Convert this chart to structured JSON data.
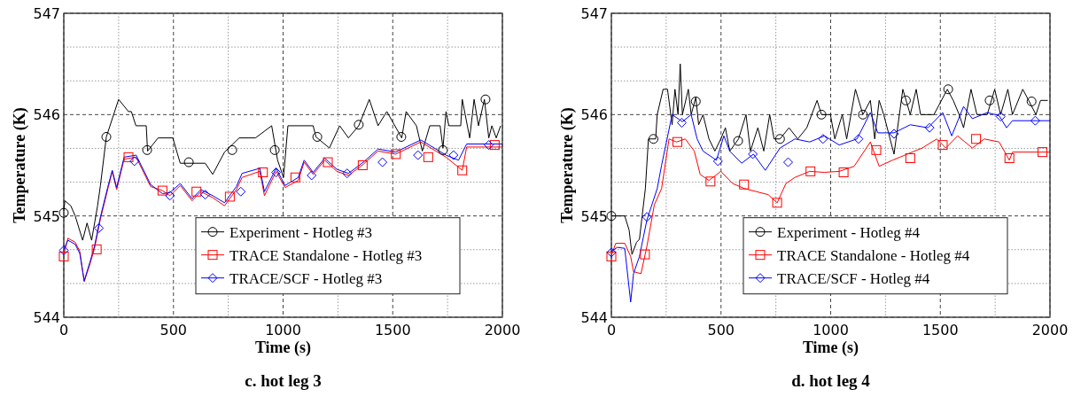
{
  "chart_data": [
    {
      "type": "line",
      "title": "c. hot leg 3",
      "xlabel": "Time (s)",
      "ylabel": "Temperature (K)",
      "xlim": [
        0,
        2000
      ],
      "ylim": [
        544,
        547
      ],
      "xticks": [
        0,
        {
          "value": 250,
          "label": null
        },
        500,
        {
          "value": 750,
          "label": null
        },
        1000,
        {
          "value": 1250,
          "label": null
        },
        1500,
        {
          "value": 1750,
          "label": null
        },
        2000
      ],
      "yticks": [
        544,
        {
          "value": 544.333,
          "label": null
        },
        {
          "value": 544.667,
          "label": null
        },
        545,
        {
          "value": 545.333,
          "label": null
        },
        {
          "value": 545.667,
          "label": null
        },
        546,
        {
          "value": 546.333,
          "label": null
        },
        {
          "value": 546.667,
          "label": null
        },
        547
      ],
      "grid": true,
      "legend": "bottom right",
      "line_style": "solid",
      "series": [
        {
          "name": "Experiment - Hotleg #3",
          "color": "#000000",
          "x": [
            0,
            5,
            32,
            52,
            86,
            106,
            127,
            154,
            167,
            194,
            250,
            295,
            308,
            329,
            376,
            382,
            430,
            497,
            531,
            645,
            679,
            733,
            800,
            874,
            948,
            975,
            1002,
            1022,
            1137,
            1150,
            1211,
            1258,
            1298,
            1345,
            1393,
            1433,
            1473,
            1541,
            1561,
            1608,
            1635,
            1669,
            1716,
            1729,
            1743,
            1756,
            1810,
            1817,
            1851,
            1871,
            1891,
            1918,
            1938,
            1952,
            1972,
            1992
          ],
          "values": [
            545.05,
            545.15,
            545.1,
            545.0,
            544.76,
            544.93,
            544.76,
            545.1,
            545.3,
            545.78,
            546.15,
            546.03,
            546.03,
            545.89,
            545.89,
            545.64,
            545.77,
            545.77,
            545.52,
            545.52,
            545.41,
            545.63,
            545.77,
            545.77,
            545.89,
            545.55,
            545.38,
            545.89,
            545.89,
            545.78,
            545.67,
            545.89,
            545.77,
            545.89,
            546.15,
            545.89,
            546.03,
            545.77,
            546.03,
            545.89,
            545.64,
            545.89,
            545.89,
            545.67,
            546.03,
            545.89,
            545.89,
            546.15,
            545.77,
            546.15,
            545.89,
            546.15,
            545.77,
            545.89,
            545.77,
            545.89
          ]
        },
        {
          "name": "TRACE Standalone - Hotleg #3",
          "color": "#ff0000",
          "x": [
            0,
            19,
            52,
            73,
            93,
            120,
            140,
            167,
            200,
            221,
            241,
            275,
            330,
            396,
            450,
            484,
            531,
            585,
            625,
            679,
            733,
            787,
            813,
            894,
            915,
            968,
            1009,
            1069,
            1096,
            1137,
            1190,
            1245,
            1298,
            1366,
            1433,
            1514,
            1628,
            1743,
            1817,
            1837,
            2000
          ],
          "values": [
            544.62,
            544.78,
            544.74,
            544.65,
            544.35,
            544.53,
            544.68,
            544.97,
            545.26,
            545.44,
            545.26,
            545.56,
            545.58,
            545.29,
            545.25,
            545.2,
            545.3,
            545.15,
            545.24,
            545.18,
            545.1,
            545.26,
            545.38,
            545.44,
            545.2,
            545.44,
            545.28,
            545.35,
            545.53,
            545.41,
            545.55,
            545.44,
            545.4,
            545.51,
            545.64,
            545.61,
            545.73,
            545.58,
            545.45,
            545.68,
            545.68
          ]
        },
        {
          "name": "TRACE/SCF - Hotleg #3",
          "color": "#0000ff",
          "x": [
            0,
            19,
            52,
            73,
            93,
            120,
            140,
            167,
            200,
            221,
            241,
            275,
            330,
            396,
            450,
            484,
            531,
            585,
            625,
            679,
            733,
            787,
            813,
            894,
            915,
            968,
            1009,
            1069,
            1096,
            1137,
            1190,
            1245,
            1298,
            1366,
            1433,
            1514,
            1628,
            1743,
            1800,
            1837,
            2000
          ],
          "values": [
            544.67,
            544.76,
            544.72,
            544.63,
            544.36,
            544.55,
            544.7,
            544.99,
            545.28,
            545.45,
            545.28,
            545.58,
            545.6,
            545.31,
            545.22,
            545.23,
            545.32,
            545.17,
            545.26,
            545.2,
            545.13,
            545.29,
            545.42,
            545.47,
            545.24,
            545.47,
            545.3,
            545.38,
            545.55,
            545.43,
            545.57,
            545.46,
            545.42,
            545.53,
            545.66,
            545.63,
            545.75,
            545.6,
            545.55,
            545.71,
            545.71
          ]
        },
        {
          "type": "scatter",
          "color": "#000000",
          "marker": "circle",
          "x": [
            0,
            194,
            380,
            570,
            768,
            962,
            1156,
            1345,
            1539,
            1729,
            1923
          ],
          "values": [
            545.03,
            545.78,
            545.65,
            545.53,
            545.65,
            545.65,
            545.78,
            545.9,
            545.78,
            545.65,
            546.15
          ]
        },
        {
          "type": "scatter",
          "color": "#ff0000",
          "marker": "square",
          "x": [
            0,
            150,
            295,
            450,
            605,
            757,
            908,
            1056,
            1204,
            1363,
            1514,
            1662,
            1817,
            1965
          ],
          "values": [
            544.6,
            544.67,
            545.58,
            545.25,
            545.24,
            545.19,
            545.43,
            545.38,
            545.53,
            545.5,
            545.61,
            545.58,
            545.45,
            545.7
          ]
        },
        {
          "type": "scatter",
          "color": "#0000ff",
          "marker": "diamond",
          "x": [
            0,
            160,
            322,
            484,
            645,
            807,
            968,
            1130,
            1292,
            1453,
            1615,
            1777,
            1938
          ],
          "values": [
            544.66,
            544.88,
            545.54,
            545.2,
            545.21,
            545.24,
            545.43,
            545.4,
            545.42,
            545.53,
            545.6,
            545.6,
            545.7
          ]
        }
      ]
    },
    {
      "type": "line",
      "title": "d. hot leg 4",
      "xlabel": "Time (s)",
      "ylabel": "Temperature (K)",
      "xlim": [
        0,
        2000
      ],
      "ylim": [
        544,
        547
      ],
      "xticks": [
        0,
        {
          "value": 250,
          "label": null
        },
        500,
        {
          "value": 750,
          "label": null
        },
        1000,
        {
          "value": 1250,
          "label": null
        },
        1500,
        {
          "value": 1750,
          "label": null
        },
        2000
      ],
      "yticks": [
        544,
        {
          "value": 544.333,
          "label": null
        },
        {
          "value": 544.667,
          "label": null
        },
        545,
        {
          "value": 545.333,
          "label": null
        },
        {
          "value": 545.667,
          "label": null
        },
        546,
        {
          "value": 546.333,
          "label": null
        },
        {
          "value": 546.667,
          "label": null
        },
        547
      ],
      "grid": true,
      "legend": "bottom right",
      "line_style": "solid",
      "series": [
        {
          "name": "Experiment - Hotleg #4",
          "color": "#000000",
          "x": [
            0,
            61,
            81,
            94,
            115,
            128,
            155,
            169,
            202,
            209,
            236,
            256,
            277,
            290,
            304,
            314,
            324,
            351,
            364,
            385,
            398,
            418,
            445,
            472,
            499,
            520,
            540,
            580,
            614,
            634,
            668,
            695,
            722,
            742,
            769,
            810,
            850,
            891,
            938,
            958,
            999,
            1019,
            1053,
            1073,
            1113,
            1147,
            1181,
            1201,
            1221,
            1242,
            1289,
            1329,
            1363,
            1390,
            1410,
            1471,
            1532,
            1559,
            1586,
            1606,
            1640,
            1667,
            1714,
            1748,
            1775,
            1808,
            1829,
            1876,
            1903,
            1936,
            1957,
            1990
          ],
          "values": [
            545.0,
            545.0,
            544.86,
            544.62,
            544.74,
            544.77,
            545.27,
            545.76,
            545.76,
            546.0,
            546.25,
            546.25,
            545.9,
            546.25,
            546.0,
            546.5,
            546.0,
            546.25,
            546.0,
            546.17,
            545.9,
            546.0,
            545.76,
            545.64,
            545.76,
            545.87,
            545.64,
            545.76,
            546.0,
            545.64,
            545.87,
            545.64,
            546.0,
            545.76,
            545.76,
            545.87,
            545.76,
            545.87,
            546.14,
            546.0,
            546.0,
            545.76,
            546.0,
            545.76,
            546.25,
            546.0,
            546.14,
            545.76,
            546.14,
            546.0,
            545.61,
            546.25,
            546.0,
            546.25,
            546.0,
            546.0,
            546.25,
            546.14,
            546.0,
            545.87,
            546.25,
            546.0,
            546.0,
            546.25,
            546.0,
            546.25,
            546.0,
            546.25,
            546.14,
            546.0,
            546.14,
            546.14
          ]
        },
        {
          "name": "TRACE Standalone - Hotleg #4",
          "color": "#ff0000",
          "x": [
            0,
            20,
            61,
            88,
            101,
            135,
            162,
            196,
            229,
            263,
            297,
            337,
            378,
            405,
            445,
            499,
            553,
            607,
            661,
            715,
            756,
            796,
            837,
            904,
            972,
            1039,
            1107,
            1181,
            1221,
            1282,
            1349,
            1417,
            1484,
            1525,
            1579,
            1646,
            1700,
            1768,
            1815,
            1829,
            2000
          ],
          "values": [
            544.61,
            544.73,
            544.73,
            544.6,
            544.45,
            544.43,
            544.7,
            545.11,
            545.27,
            545.76,
            545.73,
            545.76,
            545.64,
            545.41,
            545.35,
            545.44,
            545.32,
            545.27,
            545.24,
            545.21,
            545.13,
            545.32,
            545.38,
            545.44,
            545.43,
            545.44,
            545.49,
            545.73,
            545.49,
            545.55,
            545.61,
            545.67,
            545.76,
            545.67,
            545.79,
            545.67,
            545.76,
            545.73,
            545.55,
            545.63,
            545.63
          ]
        },
        {
          "name": "TRACE/SCF - Hotleg #4",
          "color": "#0000ff",
          "x": [
            0,
            27,
            61,
            88,
            101,
            128,
            162,
            209,
            229,
            277,
            324,
            364,
            391,
            418,
            479,
            513,
            540,
            594,
            648,
            702,
            769,
            837,
            904,
            972,
            1039,
            1120,
            1181,
            1215,
            1289,
            1363,
            1444,
            1511,
            1552,
            1606,
            1646,
            1714,
            1768,
            1802,
            1829,
            2000
          ],
          "values": [
            544.65,
            544.69,
            544.68,
            544.15,
            544.43,
            544.6,
            544.96,
            545.27,
            545.5,
            546.0,
            545.93,
            546.0,
            545.76,
            545.64,
            545.55,
            545.79,
            545.64,
            545.52,
            545.61,
            545.45,
            545.67,
            545.76,
            545.73,
            545.79,
            545.7,
            545.76,
            546.02,
            545.82,
            545.82,
            545.9,
            545.87,
            546.02,
            545.79,
            546.08,
            545.96,
            546.02,
            545.99,
            545.87,
            545.94,
            545.94
          ]
        },
        {
          "type": "scatter",
          "color": "#000000",
          "marker": "circle",
          "x": [
            0,
            192,
            385,
            578,
            769,
            958,
            1147,
            1343,
            1536,
            1725,
            1916
          ],
          "values": [
            545.0,
            545.76,
            546.13,
            545.74,
            545.76,
            546.0,
            546.0,
            546.14,
            546.25,
            546.14,
            546.13
          ]
        },
        {
          "type": "scatter",
          "color": "#ff0000",
          "marker": "square",
          "x": [
            0,
            153,
            301,
            452,
            605,
            756,
            908,
            1059,
            1208,
            1363,
            1511,
            1663,
            1815,
            1966
          ],
          "values": [
            544.6,
            544.62,
            545.73,
            545.34,
            545.31,
            545.13,
            545.44,
            545.43,
            545.65,
            545.57,
            545.7,
            545.76,
            545.57,
            545.63
          ]
        },
        {
          "type": "scatter",
          "color": "#0000ff",
          "marker": "diamond",
          "x": [
            0,
            162,
            321,
            486,
            645,
            806,
            965,
            1127,
            1289,
            1451,
            1775,
            1933
          ],
          "values": [
            544.64,
            544.99,
            545.92,
            545.54,
            545.61,
            545.53,
            545.76,
            545.76,
            545.81,
            545.87,
            545.98,
            545.94
          ]
        }
      ]
    }
  ]
}
